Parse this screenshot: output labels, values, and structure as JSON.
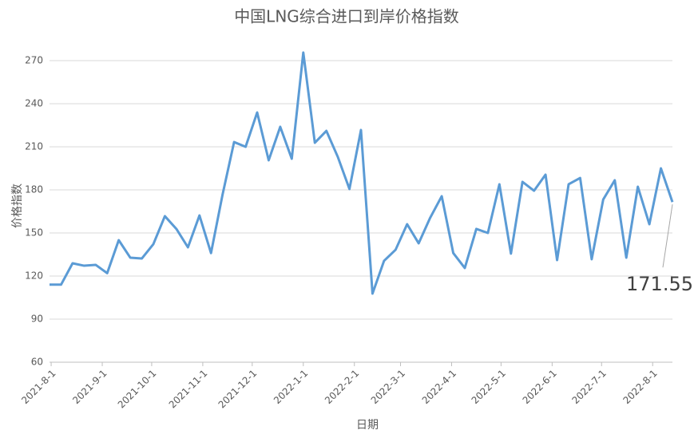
{
  "chart_data": {
    "type": "line",
    "title": "中国LNG综合进口到岸价格指数",
    "xlabel": "日期",
    "ylabel": "价格指数",
    "x": [
      "2021-07-31",
      "2021-08-07",
      "2021-08-14",
      "2021-08-21",
      "2021-08-28",
      "2021-09-04",
      "2021-09-11",
      "2021-09-18",
      "2021-09-25",
      "2021-10-02",
      "2021-10-09",
      "2021-10-16",
      "2021-10-23",
      "2021-10-30",
      "2021-11-06",
      "2021-11-13",
      "2021-11-20",
      "2021-11-27",
      "2021-12-04",
      "2021-12-11",
      "2021-12-18",
      "2021-12-25",
      "2022-01-01",
      "2022-01-08",
      "2022-01-15",
      "2022-01-22",
      "2022-01-29",
      "2022-02-05",
      "2022-02-12",
      "2022-02-19",
      "2022-02-26",
      "2022-03-05",
      "2022-03-12",
      "2022-03-19",
      "2022-03-26",
      "2022-04-02",
      "2022-04-09",
      "2022-04-16",
      "2022-04-23",
      "2022-04-30",
      "2022-05-07",
      "2022-05-14",
      "2022-05-21",
      "2022-05-28",
      "2022-06-04",
      "2022-06-11",
      "2022-06-18",
      "2022-06-25",
      "2022-07-02",
      "2022-07-09",
      "2022-07-16",
      "2022-07-23",
      "2022-07-30",
      "2022-08-06",
      "2022-08-13"
    ],
    "values": [
      114,
      114,
      128.9,
      127.2,
      127.8,
      122,
      145,
      132.8,
      132.2,
      142.2,
      161.7,
      152.8,
      140,
      162.2,
      136,
      176.7,
      213.3,
      210,
      233.9,
      200.6,
      223.9,
      201.7,
      275.6,
      212.8,
      221.1,
      202.8,
      180.6,
      221.7,
      107.8,
      130.6,
      138.3,
      156.1,
      142.8,
      160.6,
      175.6,
      136,
      125.6,
      152.8,
      150,
      183.9,
      135.6,
      185.6,
      179.4,
      190.6,
      131.1,
      183.9,
      188.3,
      131.7,
      173.3,
      186.7,
      132.8,
      182.2,
      156.1,
      195,
      171.55
    ],
    "color": "#5b9bd5",
    "annotation": "171.55",
    "xlim": [
      "2021-07-31",
      "2022-08-13"
    ],
    "xticks": [
      {
        "value": "2021-08-01",
        "label": "2021-8-1"
      },
      {
        "value": "2021-09-01",
        "label": "2021-9-1"
      },
      {
        "value": "2021-10-01",
        "label": "2021-10-1"
      },
      {
        "value": "2021-11-01",
        "label": "2021-11-1"
      },
      {
        "value": "2021-12-01",
        "label": "2021-12-1"
      },
      {
        "value": "2022-01-01",
        "label": "2022-1-1"
      },
      {
        "value": "2022-02-01",
        "label": "2022-2-1"
      },
      {
        "value": "2022-03-01",
        "label": "2022-3-1"
      },
      {
        "value": "2022-04-01",
        "label": "2022-4-1"
      },
      {
        "value": "2022-05-01",
        "label": "2022-5-1"
      },
      {
        "value": "2022-06-01",
        "label": "2022-6-1"
      },
      {
        "value": "2022-07-01",
        "label": "2022-7-1"
      },
      {
        "value": "2022-08-01",
        "label": "2022-8-1"
      }
    ],
    "ylim": [
      60,
      280
    ],
    "yticks": [
      60,
      90,
      120,
      150,
      180,
      210,
      240,
      270
    ],
    "grid": true
  }
}
